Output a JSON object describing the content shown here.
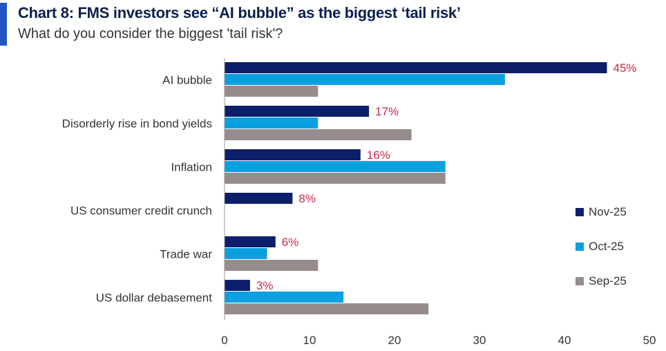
{
  "title": "Chart 8: FMS investors see “AI bubble” as the biggest ‘tail risk’",
  "subtitle": "What do you consider the biggest 'tail risk'?",
  "colors": {
    "accent": "#1f56c4",
    "nov": "#0d1f6b",
    "oct": "#0aa0e0",
    "sep": "#968c8c",
    "label": "#c8294a"
  },
  "chart_data": {
    "type": "bar",
    "orientation": "horizontal",
    "title": "Chart 8: FMS investors see “AI bubble” as the biggest ‘tail risk’",
    "subtitle": "What do you consider the biggest 'tail risk'?",
    "categories": [
      "AI bubble",
      "Disorderly rise in bond yields",
      "Inflation",
      "US consumer credit crunch",
      "Trade war",
      "US dollar debasement"
    ],
    "series": [
      {
        "name": "Nov-25",
        "color": "#0d1f6b",
        "values": [
          45,
          17,
          16,
          8,
          6,
          3
        ]
      },
      {
        "name": "Oct-25",
        "color": "#0aa0e0",
        "values": [
          33,
          11,
          26,
          0,
          5,
          14
        ]
      },
      {
        "name": "Sep-25",
        "color": "#968c8c",
        "values": [
          11,
          22,
          26,
          0,
          11,
          24
        ]
      }
    ],
    "data_labels": [
      "45%",
      "17%",
      "16%",
      "8%",
      "6%",
      "3%"
    ],
    "xlim": [
      0,
      50
    ],
    "xticks": [
      "0",
      "10",
      "20",
      "30",
      "40",
      "50"
    ],
    "grid": false,
    "legend_position": "right"
  }
}
